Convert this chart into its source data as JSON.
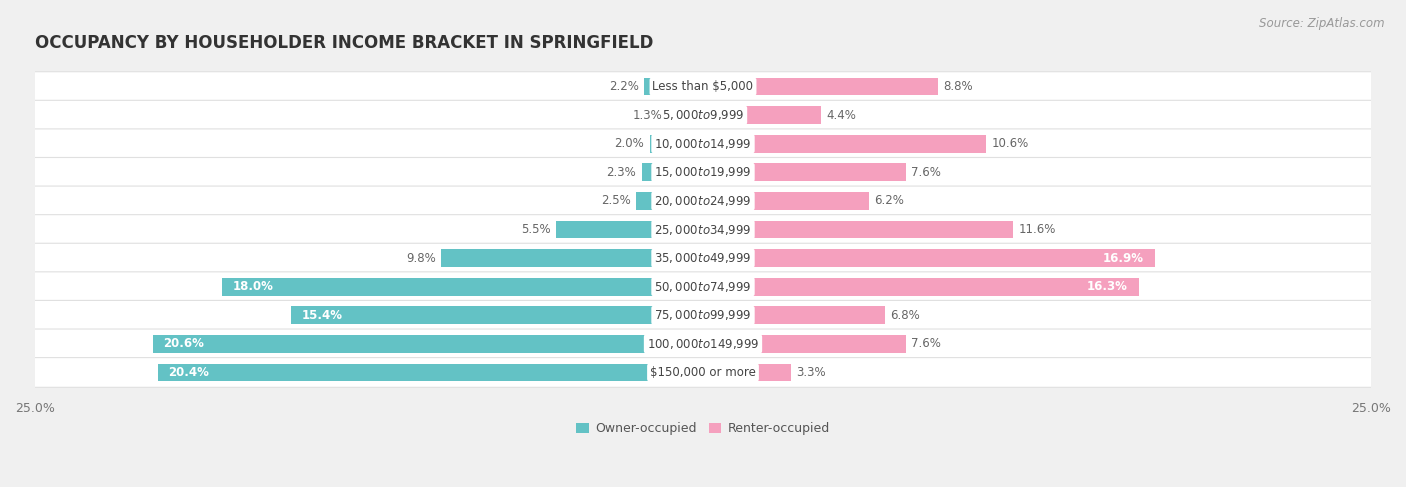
{
  "title": "OCCUPANCY BY HOUSEHOLDER INCOME BRACKET IN SPRINGFIELD",
  "source": "Source: ZipAtlas.com",
  "categories": [
    "Less than $5,000",
    "$5,000 to $9,999",
    "$10,000 to $14,999",
    "$15,000 to $19,999",
    "$20,000 to $24,999",
    "$25,000 to $34,999",
    "$35,000 to $49,999",
    "$50,000 to $74,999",
    "$75,000 to $99,999",
    "$100,000 to $149,999",
    "$150,000 or more"
  ],
  "owner_values": [
    2.2,
    1.3,
    2.0,
    2.3,
    2.5,
    5.5,
    9.8,
    18.0,
    15.4,
    20.6,
    20.4
  ],
  "renter_values": [
    8.8,
    4.4,
    10.6,
    7.6,
    6.2,
    11.6,
    16.9,
    16.3,
    6.8,
    7.6,
    3.3
  ],
  "owner_color": "#63C2C5",
  "renter_color": "#F5A0BE",
  "background_color": "#f0f0f0",
  "bar_bg_color": "#ffffff",
  "row_bg_color": "#f7f7f7",
  "xlim": 25.0,
  "bar_height": 0.62,
  "title_fontsize": 12,
  "label_fontsize": 8.5,
  "tick_fontsize": 9,
  "legend_fontsize": 9,
  "source_fontsize": 8.5,
  "cat_label_fontsize": 8.5
}
